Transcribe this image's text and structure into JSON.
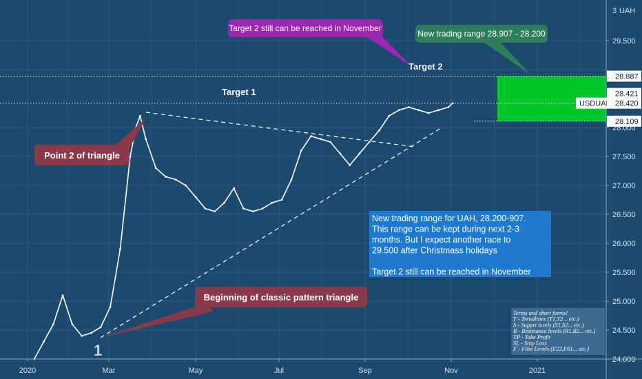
{
  "chart_data": {
    "type": "line",
    "symbol": "USDUAH",
    "currency_label": "UAH",
    "x_tick_labels": [
      "2020",
      "Mar",
      "May",
      "Jul",
      "Sep",
      "Nov",
      "2021"
    ],
    "y_tick_labels": [
      "24.000",
      "24.500",
      "25.000",
      "25.500",
      "26.000",
      "26.500",
      "27.000",
      "27.500",
      "28.000",
      "29.500"
    ],
    "y_top_label": "3",
    "ylim": [
      24.0,
      30.2
    ],
    "grid": true,
    "series": [
      {
        "name": "USDUAH",
        "x": [
          "2020-01-06",
          "2020-01-13",
          "2020-01-20",
          "2020-01-27",
          "2020-02-03",
          "2020-02-10",
          "2020-02-17",
          "2020-02-24",
          "2020-03-02",
          "2020-03-09",
          "2020-03-16",
          "2020-03-20",
          "2020-03-23",
          "2020-03-27",
          "2020-04-03",
          "2020-04-10",
          "2020-04-17",
          "2020-04-24",
          "2020-05-01",
          "2020-05-08",
          "2020-05-15",
          "2020-05-22",
          "2020-05-29",
          "2020-06-05",
          "2020-06-12",
          "2020-06-19",
          "2020-06-26",
          "2020-07-03",
          "2020-07-10",
          "2020-07-17",
          "2020-07-24",
          "2020-07-31",
          "2020-08-07",
          "2020-08-14",
          "2020-08-21",
          "2020-08-28",
          "2020-09-04",
          "2020-09-11",
          "2020-09-18",
          "2020-09-25",
          "2020-10-02",
          "2020-10-09",
          "2020-10-16",
          "2020-10-23",
          "2020-10-30",
          "2020-11-02"
        ],
        "values": [
          24.0,
          24.3,
          24.6,
          25.1,
          24.6,
          24.4,
          24.45,
          24.55,
          24.9,
          25.9,
          27.5,
          28.0,
          28.2,
          27.8,
          27.3,
          27.15,
          27.1,
          27.0,
          26.8,
          26.6,
          26.55,
          26.7,
          26.95,
          26.6,
          26.55,
          26.6,
          26.7,
          26.75,
          27.1,
          27.6,
          27.85,
          27.8,
          27.75,
          27.55,
          27.35,
          27.55,
          27.75,
          27.95,
          28.2,
          28.3,
          28.35,
          28.3,
          28.25,
          28.3,
          28.35,
          28.42
        ]
      }
    ],
    "levels": [
      {
        "label": "28.887",
        "value": 28.887
      },
      {
        "label": "28.421",
        "value": 28.421
      },
      {
        "label": "28.420",
        "value": 28.42
      },
      {
        "label": "28.109",
        "value": 28.109
      }
    ],
    "last_price_tag": {
      "symbol": "USDUAH",
      "value": "28.420"
    },
    "annotations": {
      "target1": "Target 1",
      "target2": "Target 2",
      "purple_callout": "Target 2 still can be reached in November",
      "green_callout": "New trading range 28.907 - 28.200",
      "point2": "Point 2 of triangle",
      "beginning": "Beginning of classic pattern triangle",
      "point1": "1",
      "note_lines": [
        "New trading range for UAH, 28.200-907.",
        "This range can be kept during next 2-3",
        "months. But I expect another race to",
        "29.500 after Christmass holidays",
        "",
        "Target 2 still can be reached in November"
      ],
      "terms_lines": [
        "Terms and short forms!",
        "T - Trendlines (T1,T2... etc.)",
        "S - Supprt levels (S1,S2... etc.)",
        "R - Resistance levels (R1,R2... etc.)",
        "TP - Take Profit",
        "SL - Stop Loss",
        "F - Fibo Levels  (F23,F61... etc.)"
      ]
    },
    "colors": {
      "background": "#1c4a6e",
      "price_line": "#ffffff",
      "green_zone": "#00c82a",
      "purple_callout": "#9c27b0",
      "green_callout": "#2e7d5b",
      "red_callout": "#8b3a4a",
      "note_box": "#1e7ad1",
      "terms_box": "#3f6f93"
    }
  }
}
